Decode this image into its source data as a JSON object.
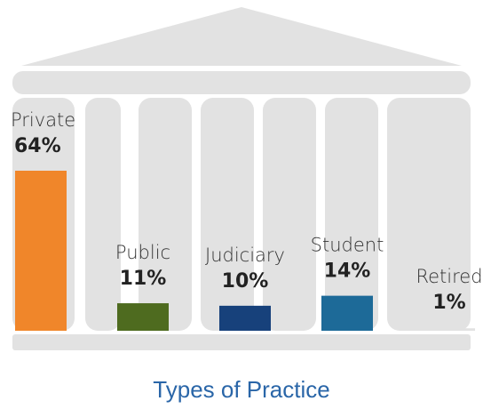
{
  "chart_data": {
    "type": "bar",
    "title": "Types of Practice",
    "categories": [
      "Private",
      "Public",
      "Judiciary",
      "Student",
      "Retired"
    ],
    "values": [
      64,
      11,
      10,
      14,
      1
    ],
    "value_labels": [
      "64%",
      "11%",
      "10%",
      "14%",
      "1%"
    ],
    "colors": [
      "#f0862a",
      "#4e6b1f",
      "#17417b",
      "#1d6a98",
      "#e2e2e2"
    ]
  }
}
